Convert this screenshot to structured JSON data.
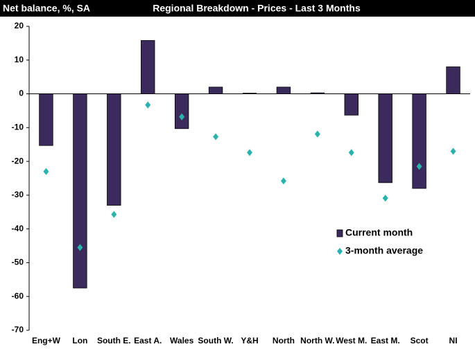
{
  "chart_data": {
    "type": "bar",
    "title": "Regional Breakdown - Prices - Last 3 Months",
    "y_label": "Net balance, %, SA",
    "categories": [
      "Eng+W",
      "Lon",
      "South E.",
      "East A.",
      "Wales",
      "South W.",
      "Y&H",
      "North",
      "North W.",
      "West M.",
      "East M.",
      "Scot",
      "NI"
    ],
    "series": [
      {
        "name": "Current month",
        "color": "#3b2a5c",
        "mark": "bar",
        "values": [
          -15.3,
          -57.5,
          -33,
          15.8,
          -10.3,
          2,
          0.2,
          2,
          0.3,
          -6.3,
          -26.3,
          -28,
          8
        ]
      },
      {
        "name": "3-month average",
        "color": "#2ab3ad",
        "mark": "diamond",
        "values": [
          -23,
          -45.5,
          -35.7,
          -3.3,
          -6.8,
          -12.7,
          -17.4,
          -25.8,
          -11.9,
          -17.4,
          -30.9,
          -21.5,
          -17
        ]
      }
    ],
    "ylim": [
      -70,
      20
    ],
    "yticks": [
      -70,
      -60,
      -50,
      -40,
      -30,
      -20,
      -10,
      0,
      10,
      20
    ],
    "grid": false
  }
}
